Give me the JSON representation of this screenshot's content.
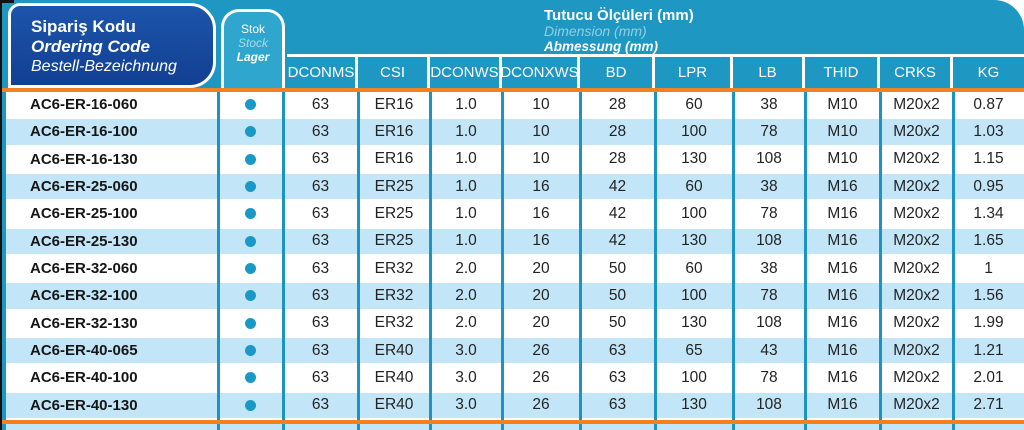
{
  "header": {
    "ordering_code": {
      "tr": "Sipariş Kodu",
      "en": "Ordering Code",
      "de": "Bestell-Bezeichnung"
    },
    "stock": {
      "tr": "Stok",
      "en": "Stock",
      "de": "Lager"
    },
    "dimensions": {
      "tr": "Tutucu Ölçüleri (mm)",
      "en": "Dimension (mm)",
      "de": "Abmessung (mm)"
    },
    "columns": [
      "DCONMS",
      "CSI",
      "DCONWS",
      "DCONXWS",
      "BD",
      "LPR",
      "LB",
      "THID",
      "CRKS",
      "KG"
    ]
  },
  "colors": {
    "teal_band": "#1e97c2",
    "stock_panel_teal": "#2ea6cd",
    "dark_blue_panel": "#17499f",
    "orange_rule": "#f08226",
    "alt_row_blue": "#c2e6f8",
    "divider_teal": "#1b94c0",
    "stock_dot": "#1b99c6"
  },
  "icons": {
    "in_stock": "filled-dot"
  },
  "rows": [
    {
      "code": "AC6-ER-16-060",
      "in_stock": true,
      "values": [
        "63",
        "ER16",
        "1.0",
        "10",
        "28",
        "60",
        "38",
        "M10",
        "M20x2",
        "0.87"
      ]
    },
    {
      "code": "AC6-ER-16-100",
      "in_stock": true,
      "values": [
        "63",
        "ER16",
        "1.0",
        "10",
        "28",
        "100",
        "78",
        "M10",
        "M20x2",
        "1.03"
      ]
    },
    {
      "code": "AC6-ER-16-130",
      "in_stock": true,
      "values": [
        "63",
        "ER16",
        "1.0",
        "10",
        "28",
        "130",
        "108",
        "M10",
        "M20x2",
        "1.15"
      ]
    },
    {
      "code": "AC6-ER-25-060",
      "in_stock": true,
      "values": [
        "63",
        "ER25",
        "1.0",
        "16",
        "42",
        "60",
        "38",
        "M16",
        "M20x2",
        "0.95"
      ]
    },
    {
      "code": "AC6-ER-25-100",
      "in_stock": true,
      "values": [
        "63",
        "ER25",
        "1.0",
        "16",
        "42",
        "100",
        "78",
        "M16",
        "M20x2",
        "1.34"
      ]
    },
    {
      "code": "AC6-ER-25-130",
      "in_stock": true,
      "values": [
        "63",
        "ER25",
        "1.0",
        "16",
        "42",
        "130",
        "108",
        "M16",
        "M20x2",
        "1.65"
      ]
    },
    {
      "code": "AC6-ER-32-060",
      "in_stock": true,
      "values": [
        "63",
        "ER32",
        "2.0",
        "20",
        "50",
        "60",
        "38",
        "M16",
        "M20x2",
        "1"
      ]
    },
    {
      "code": "AC6-ER-32-100",
      "in_stock": true,
      "values": [
        "63",
        "ER32",
        "2.0",
        "20",
        "50",
        "100",
        "78",
        "M16",
        "M20x2",
        "1.56"
      ]
    },
    {
      "code": "AC6-ER-32-130",
      "in_stock": true,
      "values": [
        "63",
        "ER32",
        "2.0",
        "20",
        "50",
        "130",
        "108",
        "M16",
        "M20x2",
        "1.99"
      ]
    },
    {
      "code": "AC6-ER-40-065",
      "in_stock": true,
      "values": [
        "63",
        "ER40",
        "3.0",
        "26",
        "63",
        "65",
        "43",
        "M16",
        "M20x2",
        "1.21"
      ]
    },
    {
      "code": "AC6-ER-40-100",
      "in_stock": true,
      "values": [
        "63",
        "ER40",
        "3.0",
        "26",
        "63",
        "100",
        "78",
        "M16",
        "M20x2",
        "2.01"
      ]
    },
    {
      "code": "AC6-ER-40-130",
      "in_stock": true,
      "values": [
        "63",
        "ER40",
        "3.0",
        "26",
        "63",
        "130",
        "108",
        "M16",
        "M20x2",
        "2.71"
      ]
    }
  ]
}
